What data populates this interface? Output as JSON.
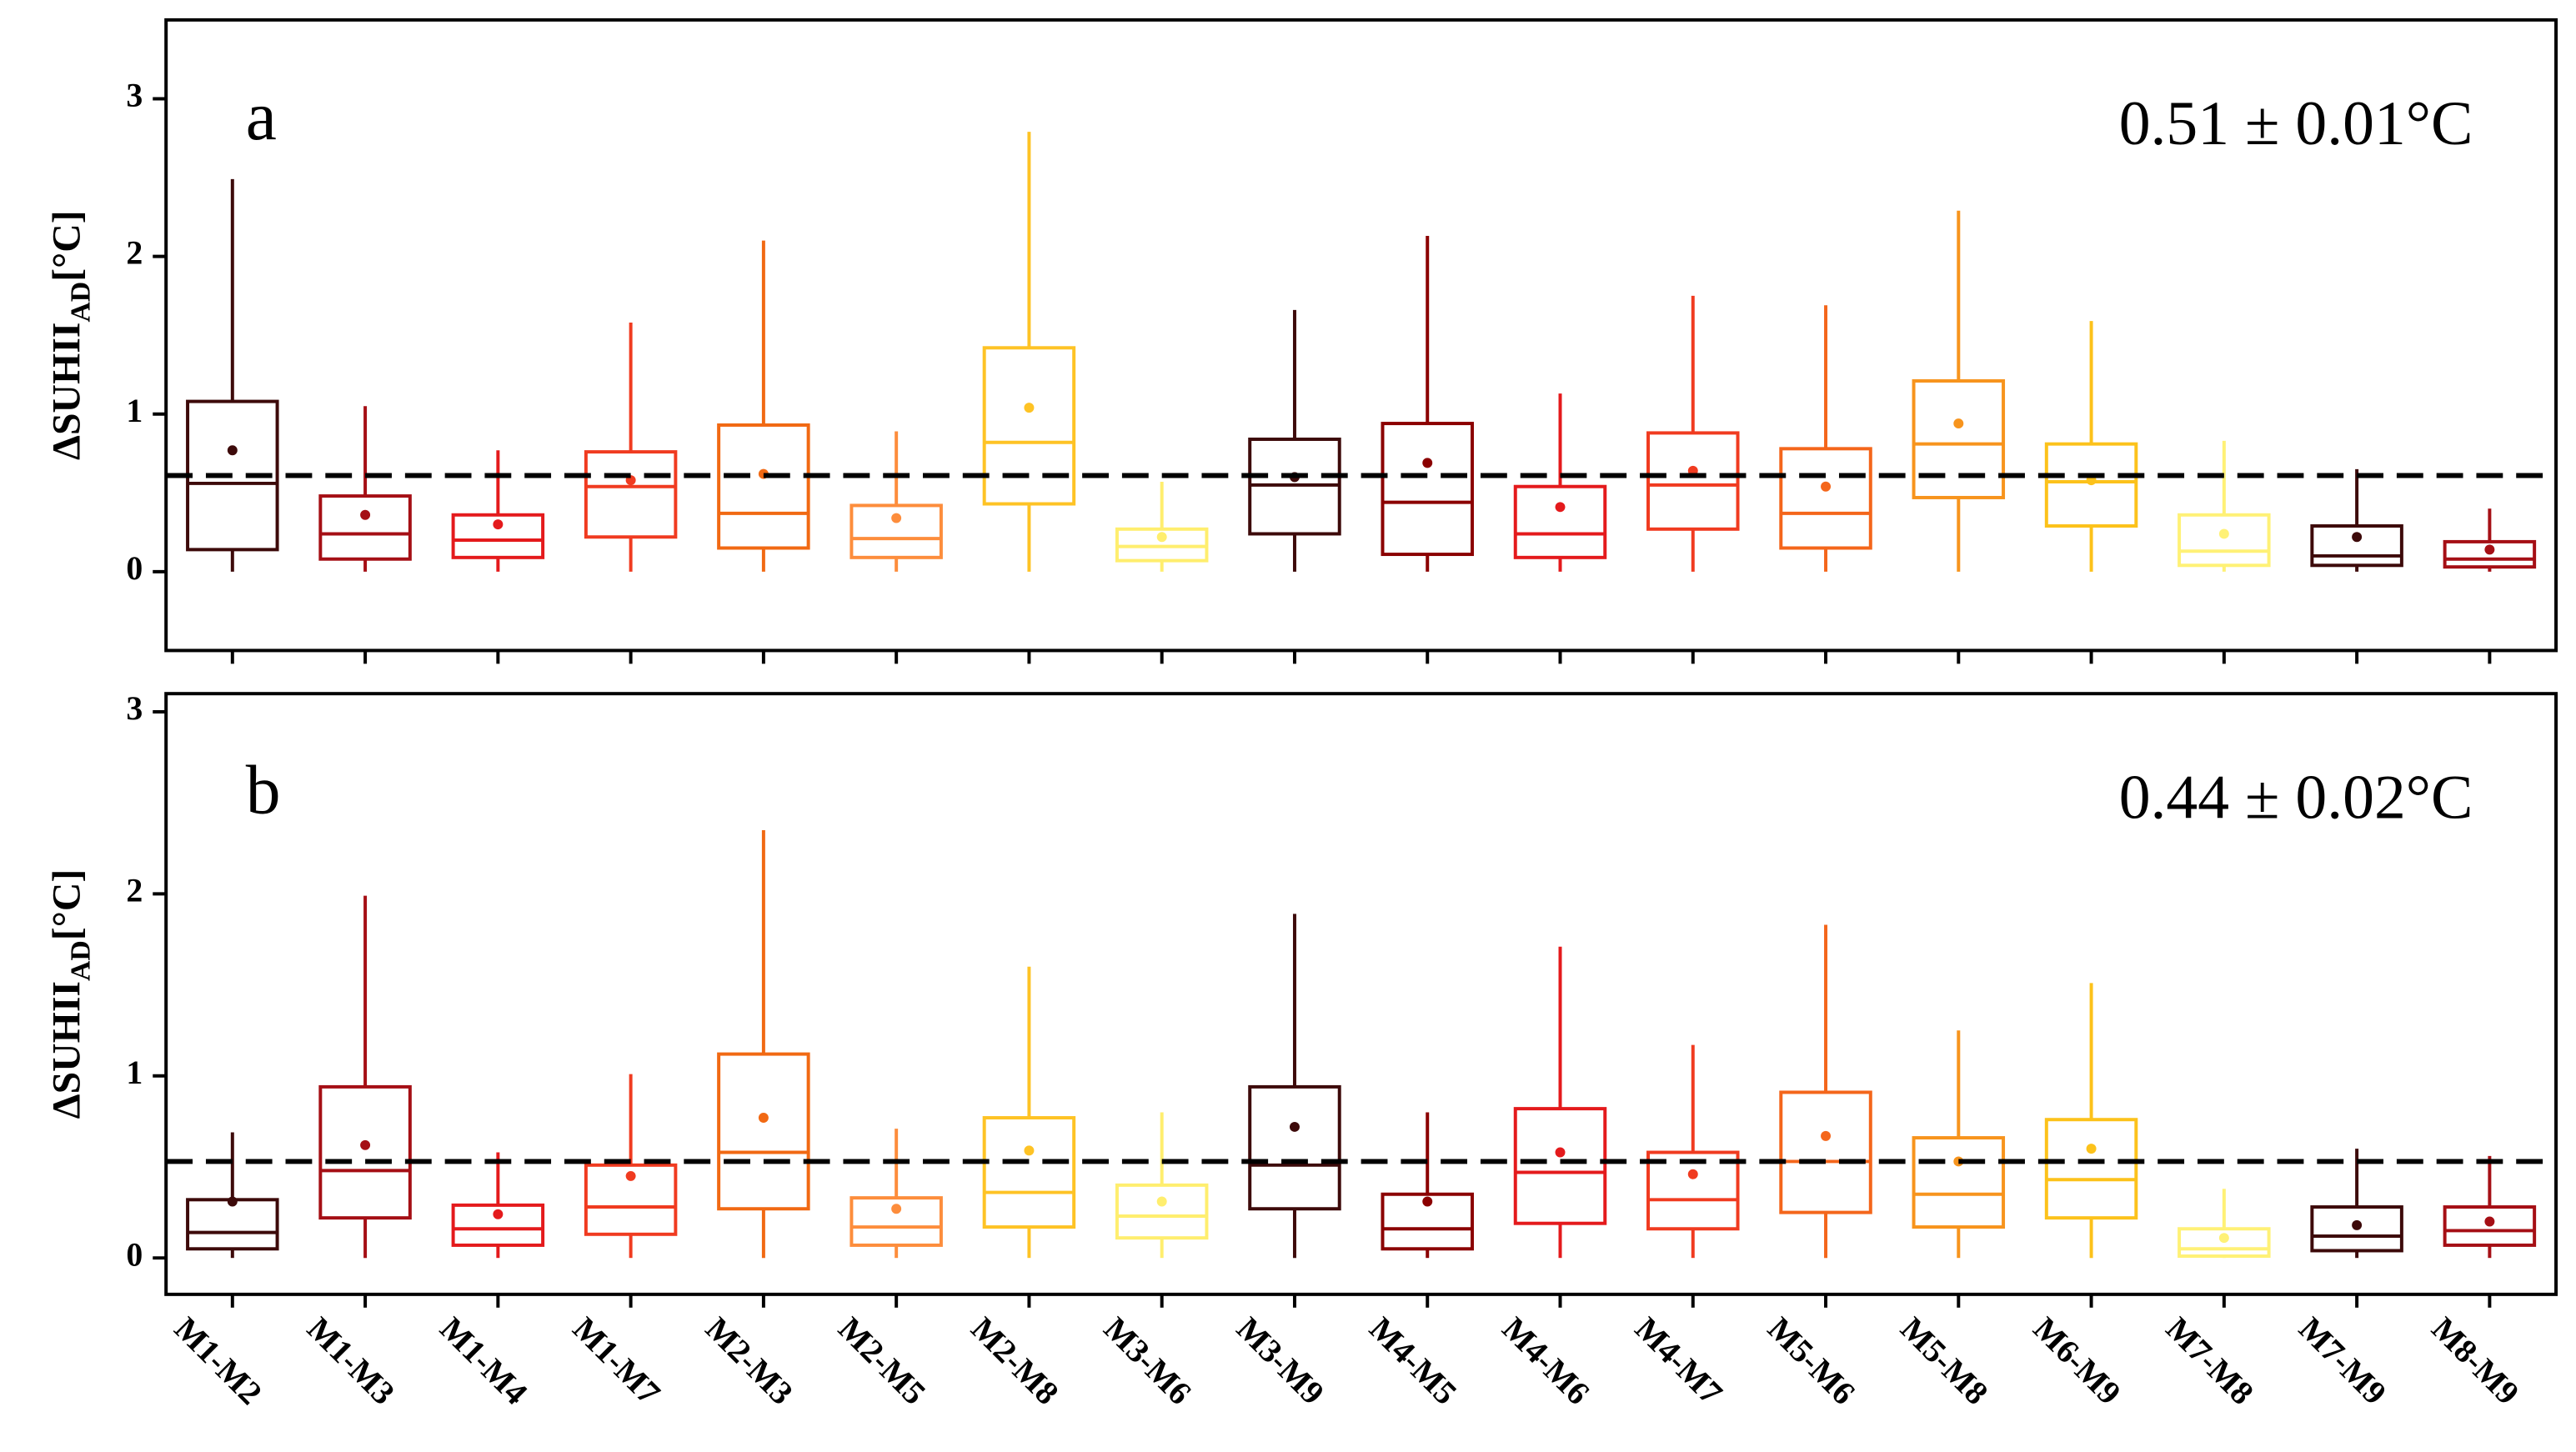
{
  "chart_data": [
    {
      "type": "box",
      "panel_label": "a",
      "annotation": "0.51 ± 0.01°C",
      "y_label": {
        "main": "ΔSUHII",
        "sub": "AD",
        "unit": "[°C]"
      },
      "ylim": [
        -0.5,
        3.5
      ],
      "yticks": [
        0,
        1,
        2,
        3
      ],
      "reference_line": 0.61,
      "boxes": [
        {
          "min": 0,
          "q1": 0.14,
          "median": 0.56,
          "q3": 1.08,
          "max": 2.49,
          "mean": 0.77,
          "color": "#3d0a0a"
        },
        {
          "min": 0,
          "q1": 0.08,
          "median": 0.24,
          "q3": 0.48,
          "max": 1.05,
          "mean": 0.36,
          "color": "#a50f15"
        },
        {
          "min": 0,
          "q1": 0.09,
          "median": 0.2,
          "q3": 0.36,
          "max": 0.77,
          "mean": 0.3,
          "color": "#e41a1c"
        },
        {
          "min": 0,
          "q1": 0.22,
          "median": 0.54,
          "q3": 0.76,
          "max": 1.58,
          "mean": 0.58,
          "color": "#f03b20"
        },
        {
          "min": 0,
          "q1": 0.15,
          "median": 0.37,
          "q3": 0.93,
          "max": 2.1,
          "mean": 0.62,
          "color": "#f16913"
        },
        {
          "min": 0,
          "q1": 0.09,
          "median": 0.21,
          "q3": 0.42,
          "max": 0.89,
          "mean": 0.34,
          "color": "#fd8d3c"
        },
        {
          "min": 0,
          "q1": 0.43,
          "median": 0.82,
          "q3": 1.42,
          "max": 2.79,
          "mean": 1.04,
          "color": "#fec325"
        },
        {
          "min": 0,
          "q1": 0.07,
          "median": 0.16,
          "q3": 0.27,
          "max": 0.57,
          "mean": 0.22,
          "color": "#ffee6e"
        },
        {
          "min": 0,
          "q1": 0.24,
          "median": 0.55,
          "q3": 0.84,
          "max": 1.66,
          "mean": 0.6,
          "color": "#3d0a0a"
        },
        {
          "min": 0,
          "q1": 0.11,
          "median": 0.44,
          "q3": 0.94,
          "max": 2.13,
          "mean": 0.69,
          "color": "#8b0000"
        },
        {
          "min": 0,
          "q1": 0.09,
          "median": 0.24,
          "q3": 0.54,
          "max": 1.13,
          "mean": 0.41,
          "color": "#e41a1c"
        },
        {
          "min": 0,
          "q1": 0.27,
          "median": 0.55,
          "q3": 0.88,
          "max": 1.75,
          "mean": 0.64,
          "color": "#f03b20"
        },
        {
          "min": 0,
          "q1": 0.15,
          "median": 0.37,
          "q3": 0.78,
          "max": 1.69,
          "mean": 0.54,
          "color": "#f4661b"
        },
        {
          "min": 0,
          "q1": 0.47,
          "median": 0.81,
          "q3": 1.21,
          "max": 2.29,
          "mean": 0.94,
          "color": "#f7941d"
        },
        {
          "min": 0,
          "q1": 0.29,
          "median": 0.57,
          "q3": 0.81,
          "max": 1.59,
          "mean": 0.58,
          "color": "#fcc21b"
        },
        {
          "min": 0,
          "q1": 0.04,
          "median": 0.13,
          "q3": 0.36,
          "max": 0.83,
          "mean": 0.24,
          "color": "#fff176"
        },
        {
          "min": 0,
          "q1": 0.04,
          "median": 0.1,
          "q3": 0.29,
          "max": 0.65,
          "mean": 0.22,
          "color": "#3d0a0a"
        },
        {
          "min": 0,
          "q1": 0.03,
          "median": 0.08,
          "q3": 0.19,
          "max": 0.4,
          "mean": 0.14,
          "color": "#a50f15"
        }
      ]
    },
    {
      "type": "box",
      "panel_label": "b",
      "annotation": "0.44 ± 0.02°C",
      "y_label": {
        "main": "ΔSUHII",
        "sub": "AD",
        "unit": "[°C]"
      },
      "ylim": [
        -0.2,
        3.1
      ],
      "yticks": [
        0,
        1,
        2,
        3
      ],
      "reference_line": 0.53,
      "categories": [
        "M1-M2",
        "M1-M3",
        "M1-M4",
        "M1-M7",
        "M2-M3",
        "M2-M5",
        "M2-M8",
        "M3-M6",
        "M3-M9",
        "M4-M5",
        "M4-M6",
        "M4-M7",
        "M5-M6",
        "M5-M8",
        "M6-M9",
        "M7-M8",
        "M7-M9",
        "M8-M9"
      ],
      "boxes": [
        {
          "min": 0,
          "q1": 0.05,
          "median": 0.14,
          "q3": 0.32,
          "max": 0.69,
          "mean": 0.31,
          "color": "#3d0a0a"
        },
        {
          "min": 0,
          "q1": 0.22,
          "median": 0.48,
          "q3": 0.94,
          "max": 1.99,
          "mean": 0.62,
          "color": "#a50f15"
        },
        {
          "min": 0,
          "q1": 0.07,
          "median": 0.16,
          "q3": 0.29,
          "max": 0.58,
          "mean": 0.24,
          "color": "#e41a1c"
        },
        {
          "min": 0,
          "q1": 0.13,
          "median": 0.28,
          "q3": 0.51,
          "max": 1.01,
          "mean": 0.45,
          "color": "#f03b20"
        },
        {
          "min": 0,
          "q1": 0.27,
          "median": 0.58,
          "q3": 1.12,
          "max": 2.35,
          "mean": 0.77,
          "color": "#f16913"
        },
        {
          "min": 0,
          "q1": 0.07,
          "median": 0.17,
          "q3": 0.33,
          "max": 0.71,
          "mean": 0.27,
          "color": "#fd8d3c"
        },
        {
          "min": 0,
          "q1": 0.17,
          "median": 0.36,
          "q3": 0.77,
          "max": 1.6,
          "mean": 0.59,
          "color": "#fec325"
        },
        {
          "min": 0,
          "q1": 0.11,
          "median": 0.23,
          "q3": 0.4,
          "max": 0.8,
          "mean": 0.31,
          "color": "#ffee6e"
        },
        {
          "min": 0,
          "q1": 0.27,
          "median": 0.51,
          "q3": 0.94,
          "max": 1.89,
          "mean": 0.72,
          "color": "#3d0a0a"
        },
        {
          "min": 0,
          "q1": 0.05,
          "median": 0.16,
          "q3": 0.35,
          "max": 0.8,
          "mean": 0.31,
          "color": "#8b0000"
        },
        {
          "min": 0,
          "q1": 0.19,
          "median": 0.47,
          "q3": 0.82,
          "max": 1.71,
          "mean": 0.58,
          "color": "#e41a1c"
        },
        {
          "min": 0,
          "q1": 0.16,
          "median": 0.32,
          "q3": 0.58,
          "max": 1.17,
          "mean": 0.46,
          "color": "#f03b20"
        },
        {
          "min": 0,
          "q1": 0.25,
          "median": 0.53,
          "q3": 0.91,
          "max": 1.83,
          "mean": 0.67,
          "color": "#f4661b"
        },
        {
          "min": 0,
          "q1": 0.17,
          "median": 0.35,
          "q3": 0.66,
          "max": 1.25,
          "mean": 0.53,
          "color": "#f7941d"
        },
        {
          "min": 0,
          "q1": 0.22,
          "median": 0.43,
          "q3": 0.76,
          "max": 1.51,
          "mean": 0.6,
          "color": "#fcc21b"
        },
        {
          "min": 0,
          "q1": 0.01,
          "median": 0.05,
          "q3": 0.16,
          "max": 0.38,
          "mean": 0.11,
          "color": "#fff176"
        },
        {
          "min": 0,
          "q1": 0.04,
          "median": 0.12,
          "q3": 0.28,
          "max": 0.6,
          "mean": 0.18,
          "color": "#3d0a0a"
        },
        {
          "min": 0,
          "q1": 0.07,
          "median": 0.15,
          "q3": 0.28,
          "max": 0.56,
          "mean": 0.2,
          "color": "#a50f15"
        }
      ]
    }
  ]
}
